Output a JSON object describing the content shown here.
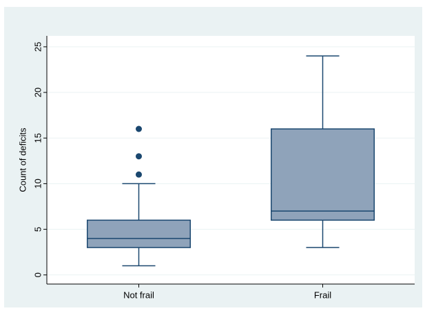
{
  "chart_data": {
    "type": "box",
    "y_label": "Count of deficits",
    "categories": [
      "Not frail",
      "Frail"
    ],
    "whisker_low": [
      1,
      3
    ],
    "q1": [
      3,
      6
    ],
    "median": [
      4,
      7
    ],
    "q3": [
      6,
      16
    ],
    "whisker_high": [
      10,
      24
    ],
    "outliers": [
      [
        11,
        13,
        16
      ],
      []
    ],
    "color": "#8fa3ba",
    "edge_color": "#1a476f",
    "ylim": [
      -1,
      26.2
    ],
    "yticks": [
      0,
      5,
      10,
      15,
      20,
      25
    ],
    "grid": true
  }
}
